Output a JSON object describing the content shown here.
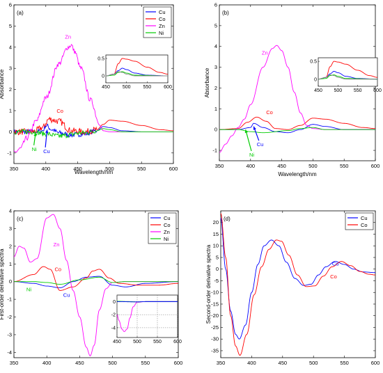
{
  "chart_data": [
    {
      "type": "line",
      "panel_label": "(a)",
      "xlabel": "Wavelength/nm",
      "ylabel": "Absorbance",
      "xlim": [
        350,
        600
      ],
      "ylim": [
        -1.5,
        6
      ],
      "xticks": [
        350,
        400,
        450,
        500,
        550,
        600
      ],
      "yticks": [
        -1,
        0,
        1,
        2,
        3,
        4,
        5,
        6
      ],
      "legend": "top-right",
      "series": [
        {
          "name": "Cu",
          "color": "#0000ff",
          "noise": 0.12,
          "x": [
            350,
            380,
            395,
            400,
            410,
            420,
            440,
            460,
            480,
            490,
            500,
            520,
            550,
            600
          ],
          "y": [
            0,
            0,
            0.05,
            0.3,
            0.1,
            -0.05,
            -0.15,
            -0.1,
            0.05,
            0.25,
            0.2,
            0.05,
            0.0,
            0.0
          ]
        },
        {
          "name": "Co",
          "color": "#ff0000",
          "noise": 0.15,
          "x": [
            350,
            380,
            395,
            405,
            420,
            440,
            460,
            480,
            490,
            500,
            520,
            550,
            580,
            600
          ],
          "y": [
            0,
            0,
            0.2,
            0.6,
            0.5,
            0.05,
            0.0,
            0.1,
            0.35,
            0.55,
            0.5,
            0.3,
            0.1,
            0.05
          ]
        },
        {
          "name": "Zn",
          "color": "#ff00ff",
          "noise": 0.12,
          "x": [
            350,
            360,
            370,
            385,
            400,
            420,
            435,
            440,
            445,
            455,
            470,
            485,
            490,
            500,
            520,
            600
          ],
          "y": [
            -1.0,
            -0.8,
            -0.3,
            0.5,
            1.6,
            3.2,
            4.0,
            4.1,
            3.8,
            3.0,
            1.5,
            0.3,
            0.05,
            0.0,
            0.0,
            0.0
          ]
        },
        {
          "name": "Ni",
          "color": "#00cc00",
          "noise": 0.12,
          "x": [
            350,
            380,
            400,
            420,
            460,
            480,
            490,
            500,
            520,
            600
          ],
          "y": [
            0,
            0,
            -0.1,
            -0.2,
            -0.05,
            0.05,
            0.15,
            0.1,
            0.0,
            0.0
          ]
        }
      ],
      "annotations": [
        {
          "text": "Zn",
          "color": "#ff00ff",
          "x": 430,
          "y": 4.4
        },
        {
          "text": "Co",
          "color": "#ff0000",
          "x": 417,
          "y": 0.9
        },
        {
          "text": "Cu",
          "color": "#0000ff",
          "x": 396,
          "y": -1.0,
          "arrow_to": [
            402,
            0.1
          ]
        },
        {
          "text": "Ni",
          "color": "#00cc00",
          "x": 378,
          "y": -0.9,
          "arrow_to": [
            384,
            -0.05
          ]
        }
      ],
      "inset": {
        "xlim": [
          450,
          600
        ],
        "ylim": [
          -0.2,
          0.6
        ],
        "xticks": [
          450,
          500,
          550,
          600
        ],
        "yticks": [
          0,
          0.5
        ],
        "series": [
          {
            "name": "Co",
            "color": "#ff0000",
            "x": [
              450,
              470,
              480,
              490,
              500,
              520,
              550,
              580,
              600
            ],
            "y": [
              0.0,
              0.05,
              0.35,
              0.5,
              0.48,
              0.42,
              0.25,
              0.1,
              0.05
            ]
          },
          {
            "name": "Cu",
            "color": "#0000ff",
            "x": [
              450,
              470,
              480,
              490,
              500,
              520,
              550,
              600
            ],
            "y": [
              0.0,
              0.05,
              0.15,
              0.22,
              0.18,
              0.08,
              0.02,
              0.0
            ]
          },
          {
            "name": "Ni",
            "color": "#00cc00",
            "x": [
              450,
              470,
              480,
              490,
              500,
              520,
              600
            ],
            "y": [
              0.0,
              0.02,
              0.1,
              0.12,
              0.08,
              0.02,
              0.0
            ]
          },
          {
            "name": "Zn",
            "color": "#888888",
            "x": [
              450,
              470,
              480,
              490,
              500,
              520,
              600
            ],
            "y": [
              0.0,
              0.05,
              0.12,
              0.1,
              0.05,
              0.0,
              0.0
            ]
          }
        ]
      }
    },
    {
      "type": "line",
      "panel_label": "(b)",
      "xlabel": "Wavelength/nm",
      "ylabel": "Absorbance",
      "xlim": [
        350,
        600
      ],
      "ylim": [
        -1.5,
        6
      ],
      "xticks": [
        350,
        400,
        450,
        500,
        550,
        600
      ],
      "yticks": [
        -1,
        0,
        1,
        2,
        3,
        4,
        5,
        6
      ],
      "series": [
        {
          "name": "Cu",
          "color": "#0000ff",
          "x": [
            350,
            380,
            400,
            405,
            420,
            440,
            460,
            480,
            500,
            520,
            550,
            600
          ],
          "y": [
            0,
            0,
            0.1,
            0.3,
            0.1,
            -0.1,
            -0.15,
            0.0,
            0.25,
            0.15,
            0.0,
            0.0
          ]
        },
        {
          "name": "Co",
          "color": "#ff0000",
          "x": [
            350,
            380,
            395,
            410,
            425,
            440,
            460,
            480,
            500,
            520,
            550,
            580,
            600
          ],
          "y": [
            0,
            0.05,
            0.35,
            0.6,
            0.4,
            0.05,
            0.0,
            0.2,
            0.55,
            0.5,
            0.3,
            0.1,
            0.05
          ]
        },
        {
          "name": "Zn",
          "color": "#ff00ff",
          "x": [
            350,
            360,
            370,
            380,
            390,
            400,
            420,
            435,
            442,
            450,
            460,
            470,
            480,
            490,
            500,
            520,
            600
          ],
          "y": [
            -1.1,
            -0.7,
            -0.3,
            0.1,
            0.5,
            1.2,
            3.0,
            3.9,
            4.05,
            3.8,
            3.0,
            1.8,
            0.8,
            0.2,
            0.05,
            0.0,
            0.0
          ]
        },
        {
          "name": "Ni",
          "color": "#00cc00",
          "x": [
            350,
            380,
            400,
            420,
            460,
            480,
            500,
            520,
            600
          ],
          "y": [
            0,
            0.0,
            -0.1,
            -0.15,
            -0.05,
            0.05,
            0.1,
            0.0,
            0.0
          ]
        }
      ],
      "annotations": [
        {
          "text": "Zn",
          "color": "#ff00ff",
          "x": 418,
          "y": 3.6
        },
        {
          "text": "Co",
          "color": "#ff0000",
          "x": 425,
          "y": 0.75
        },
        {
          "text": "Cu",
          "color": "#0000ff",
          "x": 410,
          "y": -0.8,
          "arrow_to": [
            405,
            0.15
          ]
        },
        {
          "text": "Ni",
          "color": "#00cc00",
          "x": 398,
          "y": -1.3,
          "arrow_to": [
            392,
            0.0
          ]
        }
      ],
      "inset": {
        "xlim": [
          450,
          600
        ],
        "ylim": [
          -0.2,
          0.6
        ],
        "xticks": [
          450,
          500,
          550,
          600
        ],
        "yticks": [
          0,
          0.5
        ],
        "series": [
          {
            "name": "Co",
            "color": "#ff0000",
            "x": [
              450,
              470,
              480,
              490,
              500,
              520,
              550,
              580,
              600
            ],
            "y": [
              0.0,
              0.05,
              0.35,
              0.5,
              0.48,
              0.42,
              0.25,
              0.1,
              0.05
            ]
          },
          {
            "name": "Cu",
            "color": "#0000ff",
            "x": [
              450,
              470,
              480,
              490,
              500,
              520,
              550,
              600
            ],
            "y": [
              0.0,
              0.05,
              0.15,
              0.22,
              0.18,
              0.08,
              0.02,
              0.0
            ]
          },
          {
            "name": "Ni",
            "color": "#00cc00",
            "x": [
              450,
              470,
              480,
              490,
              500,
              520,
              600
            ],
            "y": [
              0.0,
              0.02,
              0.1,
              0.12,
              0.08,
              0.02,
              0.0
            ]
          },
          {
            "name": "Zn",
            "color": "#888888",
            "x": [
              450,
              470,
              480,
              490,
              500,
              520,
              600
            ],
            "y": [
              0.0,
              0.05,
              0.12,
              0.1,
              0.05,
              0.0,
              0.0
            ]
          }
        ]
      }
    },
    {
      "type": "line",
      "panel_label": "(c)",
      "xlabel": "",
      "ylabel": "First-order derivative spectra",
      "xlim": [
        350,
        600
      ],
      "ylim": [
        -4.3,
        4.0
      ],
      "xticks": [
        350,
        400,
        450,
        500,
        550,
        600
      ],
      "yticks": [
        -4,
        -3,
        -2,
        -1,
        0,
        1,
        2,
        3,
        4
      ],
      "legend": "top-right",
      "series": [
        {
          "name": "Cu",
          "color": "#0000ff",
          "x": [
            350,
            380,
            400,
            420,
            440,
            460,
            480,
            500,
            520,
            550,
            600
          ],
          "y": [
            0.0,
            -0.1,
            -0.25,
            -0.35,
            0.0,
            0.25,
            0.3,
            -0.2,
            -0.3,
            -0.1,
            0.0
          ]
        },
        {
          "name": "Co",
          "color": "#ff0000",
          "x": [
            350,
            380,
            395,
            405,
            420,
            440,
            460,
            470,
            480,
            495,
            510,
            540,
            570,
            600
          ],
          "y": [
            0.0,
            0.4,
            0.85,
            0.7,
            -0.5,
            -0.3,
            0.2,
            0.6,
            0.7,
            0.2,
            -0.1,
            -0.2,
            -0.2,
            -0.1
          ]
        },
        {
          "name": "Zn",
          "color": "#ff00ff",
          "x": [
            350,
            358,
            365,
            375,
            385,
            400,
            410,
            420,
            430,
            440,
            450,
            460,
            466,
            472,
            480,
            490,
            500,
            520,
            600
          ],
          "y": [
            1.4,
            2.0,
            1.9,
            1.1,
            1.3,
            3.6,
            3.8,
            3.0,
            1.2,
            -0.5,
            -2.0,
            -3.7,
            -4.2,
            -3.6,
            -1.6,
            -0.4,
            -0.05,
            0.0,
            0.0
          ]
        },
        {
          "name": "Ni",
          "color": "#00cc00",
          "x": [
            350,
            380,
            400,
            420,
            450,
            480,
            500,
            520,
            550,
            600
          ],
          "y": [
            0.0,
            0.0,
            -0.05,
            -0.15,
            0.1,
            0.25,
            -0.05,
            0.0,
            0.0,
            0.0
          ]
        }
      ],
      "annotations": [
        {
          "text": "Zn",
          "color": "#ff00ff",
          "x": 410,
          "y": 2.0
        },
        {
          "text": "Co",
          "color": "#ff0000",
          "x": 412,
          "y": 0.6
        },
        {
          "text": "Ni",
          "color": "#00cc00",
          "x": 369,
          "y": -0.55
        },
        {
          "text": "Cu",
          "color": "#0000ff",
          "x": 425,
          "y": -0.85
        }
      ],
      "inset": {
        "xlim": [
          450,
          600
        ],
        "ylim": [
          -5.5,
          1.0
        ],
        "xticks": [
          450,
          500,
          550,
          600
        ],
        "yticks": [
          -4,
          -2,
          0
        ],
        "grid": true,
        "series": [
          {
            "name": "Zn",
            "color": "#ff00ff",
            "x": [
              450,
              455,
              462,
              468,
              475,
              482,
              490,
              500,
              520,
              600
            ],
            "y": [
              -2.0,
              -2.9,
              -4.2,
              -4.6,
              -4.2,
              -2.5,
              -0.8,
              -0.1,
              0.0,
              0.0
            ]
          },
          {
            "name": "Ni",
            "color": "#00cc00",
            "x": [
              450,
              480,
              500,
              520,
              600
            ],
            "y": [
              0.05,
              0.0,
              -0.05,
              0.0,
              0.0
            ]
          },
          {
            "name": "Cu",
            "color": "#0000ff",
            "x": [
              450,
              500,
              520,
              600
            ],
            "y": [
              0.0,
              -0.05,
              0.0,
              0.0
            ]
          }
        ]
      }
    },
    {
      "type": "line",
      "panel_label": "(d)",
      "xlabel": "",
      "ylabel": "Second-order derivative spectra",
      "xlim": [
        350,
        600
      ],
      "ylim": [
        -38,
        25
      ],
      "xticks": [
        350,
        400,
        450,
        500,
        550,
        600
      ],
      "yticks": [
        -35,
        -30,
        -25,
        -20,
        -15,
        -10,
        -5,
        0,
        5,
        10,
        15,
        20
      ],
      "legend": "top-right",
      "series": [
        {
          "name": "Cu",
          "color": "#0000ff",
          "x": [
            350,
            358,
            366,
            374,
            380,
            390,
            400,
            410,
            420,
            432,
            444,
            456,
            470,
            484,
            496,
            508,
            520,
            535,
            550,
            565,
            580,
            600
          ],
          "y": [
            22,
            0,
            -18,
            -28,
            -30,
            -24,
            -10,
            2,
            10,
            12.5,
            10,
            3,
            -4,
            -7,
            -6.5,
            -2.5,
            1,
            3.3,
            2,
            0,
            -1.2,
            -1.5
          ]
        },
        {
          "name": "Co",
          "color": "#ff0000",
          "x": [
            350,
            358,
            366,
            374,
            381,
            392,
            404,
            416,
            428,
            440,
            448,
            460,
            474,
            488,
            502,
            516,
            530,
            545,
            560,
            575,
            590,
            600
          ],
          "y": [
            24,
            5,
            -20,
            -33,
            -37,
            -28,
            -11,
            1,
            8.5,
            12.5,
            12,
            6,
            -2.5,
            -7.5,
            -7.2,
            -3,
            1,
            3.3,
            1.5,
            -1,
            -2.2,
            -2.5
          ]
        }
      ],
      "annotations": [
        {
          "text": "Cu",
          "color": "#0000ff",
          "x": 530,
          "y": 1.5
        },
        {
          "text": "Co",
          "color": "#ff0000",
          "x": 527,
          "y": -4
        }
      ]
    }
  ]
}
